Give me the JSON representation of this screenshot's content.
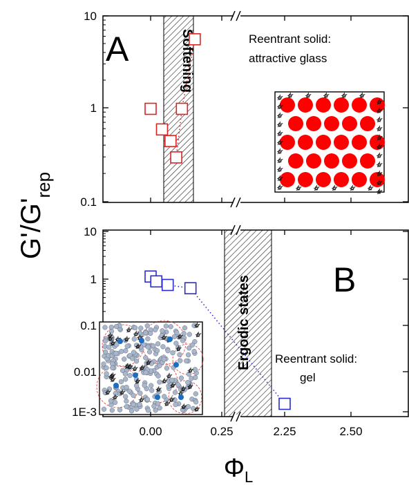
{
  "chart_data": {
    "type": "scatter",
    "shared": {
      "ylabel": "G'/G'",
      "ylabel_sub": "rep",
      "xlabel": "Φ",
      "xlabel_sub": "L",
      "x_tick_labels": [
        "0.00",
        "0.25",
        "2.25",
        "2.50"
      ],
      "axis_break": "between 0.25 and 2.25",
      "y_scale": "log",
      "colors": {
        "panel_a": "#e02020",
        "panel_b": "#2a2acf",
        "inset_particle": "#ff0000",
        "inset_gel_node": "#1a6fc4",
        "inset_gel_particle": "#a9b7cc"
      }
    },
    "panels": [
      {
        "id": "A",
        "letter": "A",
        "ylim": [
          0.1,
          10
        ],
        "y_tick_labels": [
          "0.1",
          "1",
          "10"
        ],
        "band_label": "Softening",
        "annotation": [
          "Reentrant solid:",
          "attractive glass"
        ],
        "color": "#e02020",
        "points": [
          {
            "x": 0.0,
            "y": 1.0
          },
          {
            "x": 0.04,
            "y": 0.6
          },
          {
            "x": 0.07,
            "y": 0.45
          },
          {
            "x": 0.09,
            "y": 0.3
          },
          {
            "x": 0.11,
            "y": 1.0
          },
          {
            "x": 0.155,
            "y": 5.6
          }
        ],
        "connected_points": [
          3,
          4,
          5
        ]
      },
      {
        "id": "B",
        "letter": "B",
        "ylim": [
          0.001,
          10
        ],
        "y_tick_labels": [
          "1E-3",
          "0.01",
          "0.1",
          "1",
          "10"
        ],
        "band_label": "Ergodic states",
        "annotation": [
          "Reentrant solid:",
          "gel"
        ],
        "color": "#2a2acf",
        "points": [
          {
            "x": 0.0,
            "y": 1.0
          },
          {
            "x": 0.02,
            "y": 0.78
          },
          {
            "x": 0.06,
            "y": 0.65
          },
          {
            "x": 0.14,
            "y": 0.55
          },
          {
            "x": 2.25,
            "y": 0.0015
          }
        ],
        "connected_points": [
          2,
          3,
          4
        ]
      }
    ]
  }
}
